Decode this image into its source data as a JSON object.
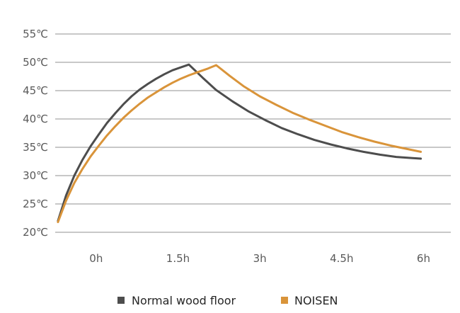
{
  "chart_data": {
    "type": "line",
    "title": "",
    "xlabel": "",
    "ylabel": "",
    "x_unit": "h",
    "x_ticks": [
      0,
      1.5,
      3,
      4.5,
      6
    ],
    "x_tick_labels": [
      "0h",
      "1.5h",
      "3h",
      "4.5h",
      "6h"
    ],
    "xlim": [
      -0.75,
      6.5
    ],
    "y_ticks": [
      20,
      25,
      30,
      35,
      40,
      45,
      50,
      55
    ],
    "y_tick_labels": [
      "20℃",
      "25℃",
      "30℃",
      "35℃",
      "40℃",
      "45℃",
      "50℃",
      "55℃"
    ],
    "ylim": [
      20,
      55
    ],
    "grid": true,
    "legend": {
      "position": "bottom",
      "items": [
        "Normal wood floor",
        "NOISEN"
      ]
    },
    "series": [
      {
        "name": "Normal wood floor",
        "color": "#4d4d4d",
        "points": [
          [
            -0.7,
            22.0
          ],
          [
            -0.55,
            26.5
          ],
          [
            -0.4,
            30.0
          ],
          [
            -0.25,
            32.8
          ],
          [
            -0.1,
            35.2
          ],
          [
            0.05,
            37.3
          ],
          [
            0.2,
            39.3
          ],
          [
            0.35,
            41.0
          ],
          [
            0.5,
            42.6
          ],
          [
            0.65,
            44.0
          ],
          [
            0.8,
            45.2
          ],
          [
            0.95,
            46.2
          ],
          [
            1.1,
            47.1
          ],
          [
            1.25,
            47.9
          ],
          [
            1.4,
            48.6
          ],
          [
            1.55,
            49.1
          ],
          [
            1.7,
            49.6
          ],
          [
            1.95,
            47.3
          ],
          [
            2.2,
            45.1
          ],
          [
            2.5,
            43.1
          ],
          [
            2.8,
            41.3
          ],
          [
            3.1,
            39.8
          ],
          [
            3.4,
            38.4
          ],
          [
            3.7,
            37.3
          ],
          [
            4.0,
            36.3
          ],
          [
            4.3,
            35.5
          ],
          [
            4.6,
            34.8
          ],
          [
            4.9,
            34.2
          ],
          [
            5.2,
            33.7
          ],
          [
            5.5,
            33.3
          ],
          [
            5.8,
            33.1
          ],
          [
            5.95,
            33.0
          ]
        ]
      },
      {
        "name": "NOISEN",
        "color": "#d9943a",
        "points": [
          [
            -0.7,
            21.8
          ],
          [
            -0.55,
            25.6
          ],
          [
            -0.4,
            28.7
          ],
          [
            -0.25,
            31.2
          ],
          [
            -0.1,
            33.4
          ],
          [
            0.05,
            35.3
          ],
          [
            0.2,
            37.1
          ],
          [
            0.35,
            38.7
          ],
          [
            0.5,
            40.2
          ],
          [
            0.65,
            41.5
          ],
          [
            0.8,
            42.7
          ],
          [
            0.95,
            43.8
          ],
          [
            1.1,
            44.7
          ],
          [
            1.25,
            45.6
          ],
          [
            1.4,
            46.4
          ],
          [
            1.55,
            47.1
          ],
          [
            1.7,
            47.7
          ],
          [
            1.9,
            48.4
          ],
          [
            2.05,
            48.9
          ],
          [
            2.2,
            49.5
          ],
          [
            2.45,
            47.6
          ],
          [
            2.7,
            45.8
          ],
          [
            3.0,
            44.0
          ],
          [
            3.3,
            42.5
          ],
          [
            3.6,
            41.1
          ],
          [
            3.9,
            39.9
          ],
          [
            4.2,
            38.8
          ],
          [
            4.5,
            37.7
          ],
          [
            4.8,
            36.8
          ],
          [
            5.1,
            36.0
          ],
          [
            5.4,
            35.3
          ],
          [
            5.7,
            34.7
          ],
          [
            5.95,
            34.2
          ]
        ]
      }
    ]
  }
}
